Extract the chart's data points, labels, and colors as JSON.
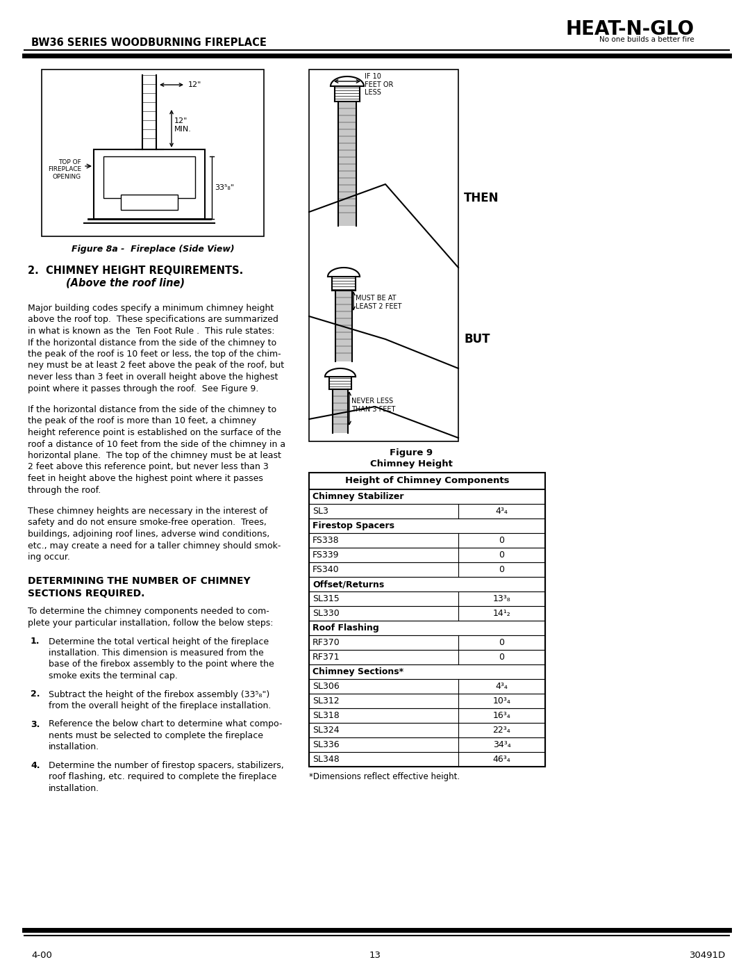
{
  "title": "BW36 SERIES WOODBURNING FIREPLACE",
  "logo_text": "HEAT-N-GLO",
  "logo_sub": "No one builds a better fire",
  "fig8a_caption": "Figure 8a -  Fireplace (Side View)",
  "section_title": "2.  CHIMNEY HEIGHT REQUIREMENTS.",
  "section_subtitle": "(Above the roof line)",
  "body_text_1": "Major building codes specify a minimum chimney height\nabove the roof top.  These specifications are summarized\nin what is known as the  Ten Foot Rule .  This rule states:\nIf the horizontal distance from the side of the chimney to\nthe peak of the roof is 10 feet or less, the top of the chim-\nney must be at least 2 feet above the peak of the roof, but\nnever less than 3 feet in overall height above the highest\npoint where it passes through the roof.  See Figure 9.",
  "body_text_2": "If the horizontal distance from the side of the chimney to\nthe peak of the roof is more than 10 feet, a chimney\nheight reference point is established on the surface of the\nroof a distance of 10 feet from the side of the chimney in a\nhorizontal plane.  The top of the chimney must be at least\n2 feet above this reference point, but never less than 3\nfeet in height above the highest point where it passes\nthrough the roof.",
  "body_text_3": "These chimney heights are necessary in the interest of\nsafety and do not ensure smoke-free operation.  Trees,\nbuildings, adjoining roof lines, adverse wind conditions,\netc., may create a need for a taller chimney should smok-\ning occur.",
  "section2_title_line1": "DETERMINING THE NUMBER OF CHIMNEY",
  "section2_title_line2": "SECTIONS REQUIRED.",
  "body_text_4": "To determine the chimney components needed to com-\nplete your particular installation, follow the below steps:",
  "step1": "Determine the total vertical height of the fireplace\ninstallation. This dimension is measured from the\nbase of the firebox assembly to the point where the\nsmoke exits the terminal cap.",
  "step2_a": "Subtract the height of the firebox assembly (33",
  "step2_sup": "5",
  "step2_sub": "8",
  "step2_b": "\") \nfrom the overall height of the fireplace installation.",
  "step3": "Reference the below chart to determine what compo-\nnents must be selected to complete the fireplace\ninstallation.",
  "step4": "Determine the number of firestop spacers, stabilizers,\nroof flashing, etc. required to complete the fireplace\ninstallation.",
  "fig9_caption_line1": "Figure 9",
  "fig9_caption_line2": "Chimney Height",
  "table_title": "Height of Chimney Components",
  "table_rows": [
    [
      "Chimney Stabilizer",
      "",
      true
    ],
    [
      "SL3",
      "4³₄",
      false
    ],
    [
      "Firestop Spacers",
      "",
      true
    ],
    [
      "FS338",
      "0",
      false
    ],
    [
      "FS339",
      "0",
      false
    ],
    [
      "FS340",
      "0",
      false
    ],
    [
      "Offset/Returns",
      "",
      true
    ],
    [
      "SL315",
      "13³₈",
      false
    ],
    [
      "SL330",
      "14¹₂",
      false
    ],
    [
      "Roof Flashing",
      "",
      true
    ],
    [
      "RF370",
      "0",
      false
    ],
    [
      "RF371",
      "0",
      false
    ],
    [
      "Chimney Sections*",
      "",
      true
    ],
    [
      "SL306",
      "4³₄",
      false
    ],
    [
      "SL312",
      "10³₄",
      false
    ],
    [
      "SL318",
      "16³₄",
      false
    ],
    [
      "SL324",
      "22³₄",
      false
    ],
    [
      "SL336",
      "34³₄",
      false
    ],
    [
      "SL348",
      "46³₄",
      false
    ]
  ],
  "table_footnote": "*Dimensions reflect effective height.",
  "footer_left": "4-00",
  "footer_center": "13",
  "footer_right": "30491D"
}
